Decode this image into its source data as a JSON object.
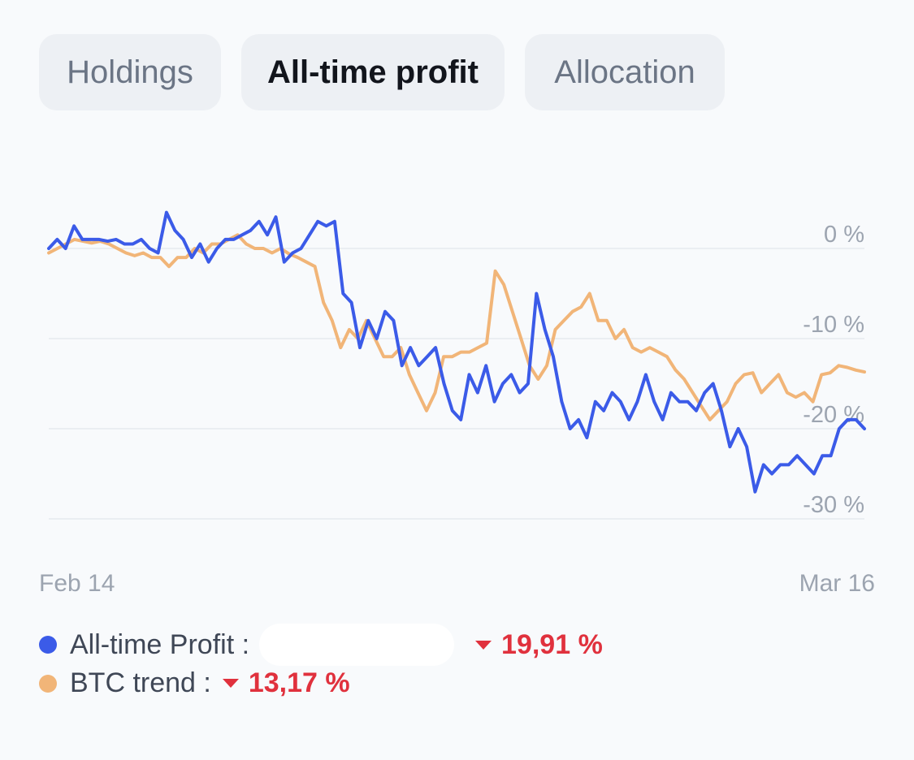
{
  "tabs": [
    {
      "label": "Holdings",
      "active": false
    },
    {
      "label": "All-time profit",
      "active": true
    },
    {
      "label": "Allocation",
      "active": false
    }
  ],
  "colors": {
    "profit": "#3b5be8",
    "btc": "#f1b578",
    "negative": "#e0313d",
    "grid": "#e6e9ee"
  },
  "chart_data": {
    "type": "line",
    "x_start_label": "Feb 14",
    "x_end_label": "Mar 16",
    "ylim": [
      -33,
      5
    ],
    "yticks": [
      {
        "value": 0,
        "label": "0 %"
      },
      {
        "value": -10,
        "label": "-10 %"
      },
      {
        "value": -20,
        "label": "-20 %"
      },
      {
        "value": -30,
        "label": "-30 %"
      }
    ],
    "grid": true,
    "series": [
      {
        "name": "All-time Profit",
        "color": "#3b5be8",
        "values": [
          0,
          1,
          0,
          2.5,
          1,
          1,
          1,
          0.8,
          1,
          0.5,
          0.5,
          1,
          0,
          -0.5,
          4,
          2,
          1,
          -1,
          0.5,
          -1.5,
          0,
          1,
          1,
          1.5,
          2,
          3,
          1.5,
          3.5,
          -1.5,
          -0.5,
          0,
          1.5,
          3,
          2.5,
          3,
          -5,
          -6,
          -11,
          -8,
          -10,
          -7,
          -8,
          -13,
          -11,
          -13,
          -12,
          -11,
          -15,
          -18,
          -19,
          -14,
          -16,
          -13,
          -17,
          -15,
          -14,
          -16,
          -15,
          -5,
          -9,
          -12,
          -17,
          -20,
          -19,
          -21,
          -17,
          -18,
          -16,
          -17,
          -19,
          -17,
          -14,
          -17,
          -19,
          -16,
          -17,
          -17,
          -18,
          -16,
          -15,
          -18,
          -22,
          -20,
          -22,
          -27,
          -24,
          -25,
          -24,
          -24,
          -23,
          -24,
          -25,
          -23,
          -23,
          -20,
          -19,
          -19,
          -20
        ]
      },
      {
        "name": "BTC trend",
        "color": "#f1b578",
        "values": [
          -0.5,
          0,
          0.5,
          1,
          0.8,
          0.6,
          0.8,
          0.5,
          0,
          -0.5,
          -0.8,
          -0.5,
          -1,
          -1,
          -2,
          -1,
          -1,
          0,
          -0.5,
          0.5,
          0.5,
          1,
          1.5,
          0.5,
          0,
          0,
          -0.5,
          0,
          -0.6,
          -1,
          -1.5,
          -2,
          -6,
          -8,
          -11,
          -9,
          -10,
          -8,
          -10,
          -12,
          -12,
          -11,
          -14,
          -16,
          -18,
          -16,
          -12,
          -12,
          -11.5,
          -11.5,
          -11,
          -10.5,
          -2.5,
          -4,
          -7,
          -10,
          -13,
          -14.5,
          -13,
          -9,
          -8,
          -7,
          -6.5,
          -5,
          -8,
          -8,
          -10,
          -9,
          -11,
          -11.5,
          -11,
          -11.5,
          -12,
          -13.5,
          -14.5,
          -16,
          -17.5,
          -19,
          -18,
          -17,
          -15,
          -14,
          -13.8,
          -16,
          -15,
          -14,
          -16,
          -16.5,
          -16,
          -17,
          -14,
          -13.8,
          -13,
          -13.2,
          -13.5,
          -13.7
        ]
      }
    ]
  },
  "legend": {
    "profit": {
      "label": "All-time Profit :",
      "value": "19,91 %"
    },
    "btc": {
      "label": "BTC trend :",
      "value": "13,17 %"
    }
  }
}
